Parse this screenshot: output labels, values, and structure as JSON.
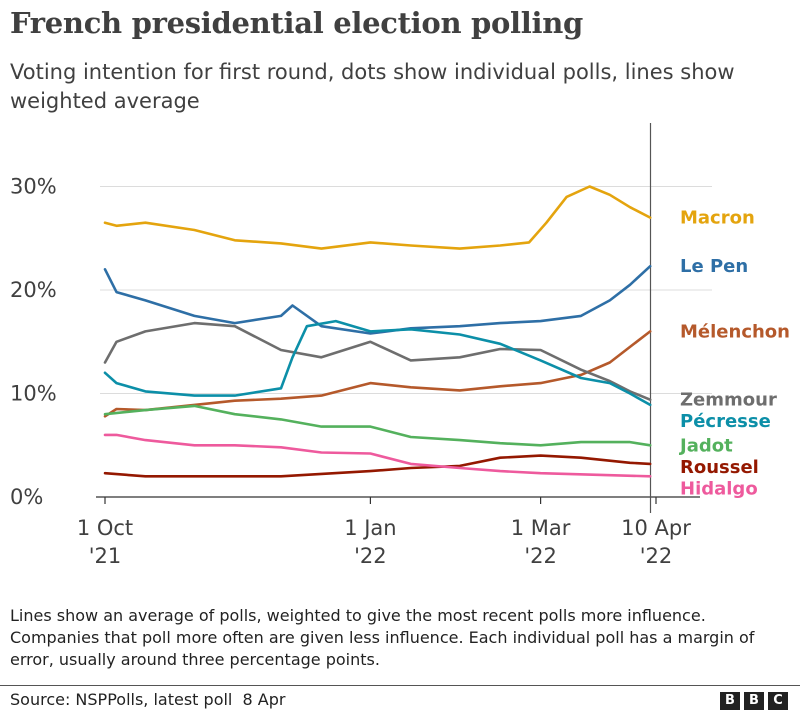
{
  "header": {
    "title": "French presidential election polling",
    "subtitle": "Voting intention for first round, dots show individual polls, lines show weighted average"
  },
  "chart_data": {
    "type": "line",
    "x_unit": "date",
    "x_range": [
      "2021-10-01",
      "2022-04-10"
    ],
    "y_range": [
      0,
      33
    ],
    "y_ticks": [
      {
        "value": 0,
        "label": "0%"
      },
      {
        "value": 10,
        "label": "10%"
      },
      {
        "value": 20,
        "label": "20%"
      },
      {
        "value": 30,
        "label": "30%"
      }
    ],
    "x_ticks": [
      {
        "date": "2021-10-01",
        "label1": "1 Oct",
        "label2": "'21"
      },
      {
        "date": "2022-01-01",
        "label1": "1 Jan",
        "label2": "'22"
      },
      {
        "date": "2022-03-01",
        "label1": "1 Mar",
        "label2": "'22"
      },
      {
        "date": "2022-04-10",
        "label1": "10 Apr",
        "label2": "'22"
      }
    ],
    "grid": "horizontal",
    "latest_poll_marker": "2022-04-08",
    "series": [
      {
        "name": "Macron",
        "color": "#E4A40E",
        "points": [
          [
            "2021-10-01",
            26.5
          ],
          [
            "2021-10-05",
            26.2
          ],
          [
            "2021-10-15",
            26.5
          ],
          [
            "2021-11-01",
            25.8
          ],
          [
            "2021-11-15",
            24.8
          ],
          [
            "2021-12-01",
            24.5
          ],
          [
            "2021-12-15",
            24.0
          ],
          [
            "2022-01-01",
            24.6
          ],
          [
            "2022-01-15",
            24.3
          ],
          [
            "2022-02-01",
            24.0
          ],
          [
            "2022-02-15",
            24.3
          ],
          [
            "2022-02-25",
            24.6
          ],
          [
            "2022-03-03",
            26.5
          ],
          [
            "2022-03-10",
            29.0
          ],
          [
            "2022-03-18",
            30.0
          ],
          [
            "2022-03-25",
            29.2
          ],
          [
            "2022-04-01",
            28.0
          ],
          [
            "2022-04-08",
            27.0
          ]
        ]
      },
      {
        "name": "Le Pen",
        "color": "#2E6FA6",
        "points": [
          [
            "2021-10-01",
            22.0
          ],
          [
            "2021-10-05",
            19.8
          ],
          [
            "2021-10-15",
            19.0
          ],
          [
            "2021-11-01",
            17.5
          ],
          [
            "2021-11-15",
            16.8
          ],
          [
            "2021-12-01",
            17.5
          ],
          [
            "2021-12-05",
            18.5
          ],
          [
            "2021-12-15",
            16.5
          ],
          [
            "2022-01-01",
            15.8
          ],
          [
            "2022-01-15",
            16.3
          ],
          [
            "2022-02-01",
            16.5
          ],
          [
            "2022-02-15",
            16.8
          ],
          [
            "2022-03-01",
            17.0
          ],
          [
            "2022-03-15",
            17.5
          ],
          [
            "2022-03-25",
            19.0
          ],
          [
            "2022-04-01",
            20.5
          ],
          [
            "2022-04-08",
            22.3
          ]
        ]
      },
      {
        "name": "Mélenchon",
        "color": "#B5592B",
        "points": [
          [
            "2021-10-01",
            7.8
          ],
          [
            "2021-10-05",
            8.5
          ],
          [
            "2021-10-15",
            8.4
          ],
          [
            "2021-11-01",
            8.9
          ],
          [
            "2021-11-15",
            9.3
          ],
          [
            "2021-12-01",
            9.5
          ],
          [
            "2021-12-15",
            9.8
          ],
          [
            "2022-01-01",
            11.0
          ],
          [
            "2022-01-15",
            10.6
          ],
          [
            "2022-02-01",
            10.3
          ],
          [
            "2022-02-15",
            10.7
          ],
          [
            "2022-03-01",
            11.0
          ],
          [
            "2022-03-15",
            11.8
          ],
          [
            "2022-03-25",
            13.0
          ],
          [
            "2022-04-01",
            14.5
          ],
          [
            "2022-04-08",
            16.0
          ]
        ]
      },
      {
        "name": "Zemmour",
        "color": "#6E6E6E",
        "points": [
          [
            "2021-10-01",
            13.0
          ],
          [
            "2021-10-05",
            15.0
          ],
          [
            "2021-10-15",
            16.0
          ],
          [
            "2021-11-01",
            16.8
          ],
          [
            "2021-11-15",
            16.5
          ],
          [
            "2021-12-01",
            14.2
          ],
          [
            "2021-12-15",
            13.5
          ],
          [
            "2022-01-01",
            15.0
          ],
          [
            "2022-01-15",
            13.2
          ],
          [
            "2022-02-01",
            13.5
          ],
          [
            "2022-02-15",
            14.3
          ],
          [
            "2022-03-01",
            14.2
          ],
          [
            "2022-03-15",
            12.3
          ],
          [
            "2022-03-25",
            11.2
          ],
          [
            "2022-04-01",
            10.2
          ],
          [
            "2022-04-08",
            9.4
          ]
        ]
      },
      {
        "name": "Pécresse",
        "color": "#0C8FA8",
        "points": [
          [
            "2021-10-01",
            12.0
          ],
          [
            "2021-10-05",
            11.0
          ],
          [
            "2021-10-15",
            10.2
          ],
          [
            "2021-11-01",
            9.8
          ],
          [
            "2021-11-15",
            9.8
          ],
          [
            "2021-12-01",
            10.5
          ],
          [
            "2021-12-05",
            13.5
          ],
          [
            "2021-12-10",
            16.5
          ],
          [
            "2021-12-20",
            17.0
          ],
          [
            "2022-01-01",
            16.0
          ],
          [
            "2022-01-15",
            16.2
          ],
          [
            "2022-02-01",
            15.7
          ],
          [
            "2022-02-15",
            14.8
          ],
          [
            "2022-03-01",
            13.2
          ],
          [
            "2022-03-15",
            11.5
          ],
          [
            "2022-03-25",
            11.0
          ],
          [
            "2022-04-01",
            10.0
          ],
          [
            "2022-04-08",
            8.9
          ]
        ]
      },
      {
        "name": "Jadot",
        "color": "#54B15D",
        "points": [
          [
            "2021-10-01",
            8.0
          ],
          [
            "2021-10-15",
            8.4
          ],
          [
            "2021-11-01",
            8.8
          ],
          [
            "2021-11-15",
            8.0
          ],
          [
            "2021-12-01",
            7.5
          ],
          [
            "2021-12-15",
            6.8
          ],
          [
            "2022-01-01",
            6.8
          ],
          [
            "2022-01-15",
            5.8
          ],
          [
            "2022-02-01",
            5.5
          ],
          [
            "2022-02-15",
            5.2
          ],
          [
            "2022-03-01",
            5.0
          ],
          [
            "2022-03-15",
            5.3
          ],
          [
            "2022-04-01",
            5.3
          ],
          [
            "2022-04-08",
            5.0
          ]
        ]
      },
      {
        "name": "Roussel",
        "color": "#941800",
        "points": [
          [
            "2021-10-01",
            2.3
          ],
          [
            "2021-10-15",
            2.0
          ],
          [
            "2021-11-01",
            2.0
          ],
          [
            "2021-12-01",
            2.0
          ],
          [
            "2022-01-01",
            2.5
          ],
          [
            "2022-01-15",
            2.8
          ],
          [
            "2022-02-01",
            3.0
          ],
          [
            "2022-02-15",
            3.8
          ],
          [
            "2022-03-01",
            4.0
          ],
          [
            "2022-03-15",
            3.8
          ],
          [
            "2022-04-01",
            3.3
          ],
          [
            "2022-04-08",
            3.2
          ]
        ]
      },
      {
        "name": "Hidalgo",
        "color": "#EE5A9D",
        "points": [
          [
            "2021-10-01",
            6.0
          ],
          [
            "2021-10-05",
            6.0
          ],
          [
            "2021-10-15",
            5.5
          ],
          [
            "2021-11-01",
            5.0
          ],
          [
            "2021-11-15",
            5.0
          ],
          [
            "2021-12-01",
            4.8
          ],
          [
            "2021-12-15",
            4.3
          ],
          [
            "2022-01-01",
            4.2
          ],
          [
            "2022-01-15",
            3.2
          ],
          [
            "2022-02-01",
            2.8
          ],
          [
            "2022-02-15",
            2.5
          ],
          [
            "2022-03-01",
            2.3
          ],
          [
            "2022-04-08",
            2.0
          ]
        ]
      }
    ]
  },
  "footer": {
    "note": "Lines show an average of polls, weighted to give the most recent polls more influence. Companies that poll more often are given less influence. Each individual poll has a margin of error, usually around three percentage points.",
    "source": "Source: NSPPolls, latest poll  8 Apr",
    "logo_letters": [
      "B",
      "B",
      "C"
    ]
  }
}
